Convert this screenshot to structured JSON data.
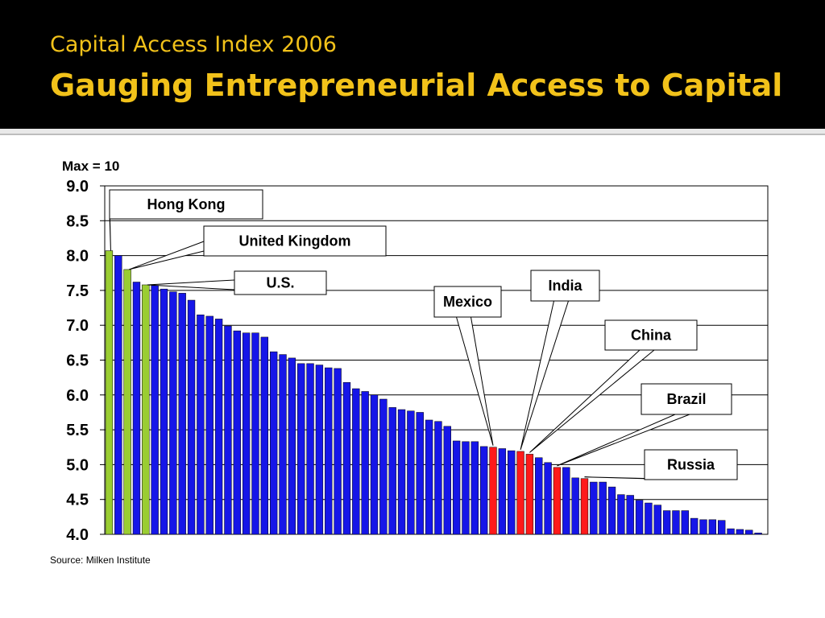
{
  "slide": {
    "title_line1": "Capital Access Index 2006",
    "title_line2": "Gauging Entrepreneurial Access to Capital",
    "source": "Source: Milken Institute"
  },
  "colors": {
    "header_bg": "#000000",
    "title": "#f2c21a",
    "bar_default": "#1616e8",
    "bar_highlight_green": "#9acd32",
    "bar_highlight_red": "#ff1a1a"
  },
  "chart_data": {
    "type": "bar",
    "title": "",
    "axis_note": "Max = 10",
    "xlabel": "",
    "ylabel": "",
    "ylim": [
      4.0,
      9.0
    ],
    "yticks": [
      "9.0",
      "8.5",
      "8.0",
      "7.5",
      "7.0",
      "6.5",
      "6.0",
      "5.5",
      "5.0",
      "4.5",
      "4.0"
    ],
    "grid": true,
    "legend": "none",
    "values": [
      8.07,
      8.0,
      7.8,
      7.62,
      7.58,
      7.57,
      7.52,
      7.48,
      7.46,
      7.36,
      7.15,
      7.13,
      7.09,
      6.99,
      6.92,
      6.89,
      6.89,
      6.83,
      6.62,
      6.58,
      6.53,
      6.45,
      6.45,
      6.43,
      6.39,
      6.38,
      6.18,
      6.09,
      6.05,
      6.0,
      5.94,
      5.82,
      5.79,
      5.77,
      5.75,
      5.64,
      5.62,
      5.55,
      5.34,
      5.33,
      5.33,
      5.26,
      5.25,
      5.23,
      5.2,
      5.19,
      5.15,
      5.1,
      5.03,
      4.96,
      4.96,
      4.81,
      4.8,
      4.75,
      4.75,
      4.68,
      4.57,
      4.56,
      4.49,
      4.45,
      4.42,
      4.34,
      4.34,
      4.34,
      4.23,
      4.21,
      4.21,
      4.2,
      4.08,
      4.07,
      4.06,
      4.02
    ],
    "highlights": [
      {
        "label": "Hong Kong",
        "index": 0,
        "color": "green"
      },
      {
        "label": "United Kingdom",
        "index": 2,
        "color": "green"
      },
      {
        "label": "U.S.",
        "index": 4,
        "color": "green"
      },
      {
        "label": "Mexico",
        "index": 42,
        "color": "red"
      },
      {
        "label": "India",
        "index": 45,
        "color": "red"
      },
      {
        "label": "China",
        "index": 46,
        "color": "red"
      },
      {
        "label": "Brazil",
        "index": 49,
        "color": "red"
      },
      {
        "label": "Russia",
        "index": 52,
        "color": "red"
      }
    ]
  }
}
